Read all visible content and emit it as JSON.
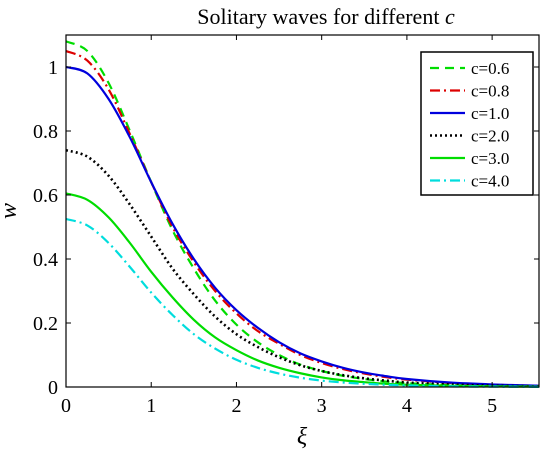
{
  "chart_data": {
    "type": "line",
    "title": "Solitary waves for different ",
    "title_var": "c",
    "xlabel": "ξ",
    "ylabel": "w",
    "xlim": [
      0,
      5.55
    ],
    "ylim": [
      0,
      1.1
    ],
    "xticks": [
      0,
      1,
      2,
      3,
      4,
      5
    ],
    "yticks": [
      0,
      0.2,
      0.4,
      0.6,
      0.8,
      1
    ],
    "ytick_labels": [
      "0",
      "0.2",
      "0.4",
      "0.6",
      "0.8",
      "1"
    ],
    "grid": false,
    "legend_position": "top-right",
    "series": [
      {
        "name": "c=0.6",
        "color": "#00dd00",
        "dash": "dashed",
        "x": [
          0,
          0.25,
          0.5,
          0.75,
          1.0,
          1.25,
          1.5,
          1.75,
          2.0,
          2.25,
          2.5,
          2.75,
          3.0,
          3.25,
          3.5,
          3.75,
          4.0,
          4.5,
          5.0,
          5.55
        ],
        "y": [
          1.08,
          1.05,
          0.95,
          0.8,
          0.64,
          0.49,
          0.37,
          0.27,
          0.195,
          0.14,
          0.1,
          0.07,
          0.05,
          0.035,
          0.025,
          0.017,
          0.012,
          0.006,
          0.003,
          0.001
        ]
      },
      {
        "name": "c=0.8",
        "color": "#dd0000",
        "dash": "dashdot",
        "x": [
          0,
          0.25,
          0.5,
          0.75,
          1.0,
          1.25,
          1.5,
          1.75,
          2.0,
          2.25,
          2.5,
          2.75,
          3.0,
          3.25,
          3.5,
          3.75,
          4.0,
          4.5,
          5.0,
          5.55
        ],
        "y": [
          1.05,
          1.02,
          0.93,
          0.79,
          0.64,
          0.5,
          0.39,
          0.3,
          0.23,
          0.175,
          0.135,
          0.1,
          0.075,
          0.056,
          0.042,
          0.031,
          0.023,
          0.013,
          0.007,
          0.004
        ]
      },
      {
        "name": "c=1.0",
        "color": "#0000dd",
        "dash": "solid",
        "x": [
          0,
          0.25,
          0.5,
          0.75,
          1.0,
          1.25,
          1.5,
          1.75,
          2.0,
          2.25,
          2.5,
          2.75,
          3.0,
          3.25,
          3.5,
          3.75,
          4.0,
          4.5,
          5.0,
          5.55
        ],
        "y": [
          1.0,
          0.98,
          0.9,
          0.78,
          0.64,
          0.51,
          0.4,
          0.31,
          0.24,
          0.185,
          0.14,
          0.105,
          0.08,
          0.06,
          0.045,
          0.034,
          0.025,
          0.014,
          0.008,
          0.004
        ]
      },
      {
        "name": "c=2.0",
        "color": "#000000",
        "dash": "dotted",
        "x": [
          0,
          0.25,
          0.5,
          0.75,
          1.0,
          1.25,
          1.5,
          1.75,
          2.0,
          2.25,
          2.5,
          2.75,
          3.0,
          3.25,
          3.5,
          3.75,
          4.0,
          4.5,
          5.0,
          5.55
        ],
        "y": [
          0.74,
          0.72,
          0.66,
          0.57,
          0.47,
          0.37,
          0.29,
          0.22,
          0.165,
          0.125,
          0.093,
          0.068,
          0.05,
          0.037,
          0.027,
          0.02,
          0.014,
          0.008,
          0.004,
          0.002
        ]
      },
      {
        "name": "c=3.0",
        "color": "#00dd00",
        "dash": "solid",
        "x": [
          0,
          0.25,
          0.5,
          0.75,
          1.0,
          1.25,
          1.5,
          1.75,
          2.0,
          2.25,
          2.5,
          2.75,
          3.0,
          3.25,
          3.5,
          3.75,
          4.0,
          4.5,
          5.0,
          5.55
        ],
        "y": [
          0.605,
          0.585,
          0.53,
          0.45,
          0.36,
          0.28,
          0.21,
          0.155,
          0.115,
          0.083,
          0.06,
          0.043,
          0.03,
          0.021,
          0.015,
          0.01,
          0.007,
          0.004,
          0.002,
          0.001
        ]
      },
      {
        "name": "c=4.0",
        "color": "#00dddd",
        "dash": "dashdot",
        "x": [
          0,
          0.25,
          0.5,
          0.75,
          1.0,
          1.25,
          1.5,
          1.75,
          2.0,
          2.25,
          2.5,
          2.75,
          3.0,
          3.25,
          3.5,
          3.75,
          4.0,
          4.5,
          5.0,
          5.55
        ],
        "y": [
          0.525,
          0.505,
          0.45,
          0.375,
          0.295,
          0.225,
          0.165,
          0.12,
          0.085,
          0.06,
          0.042,
          0.029,
          0.02,
          0.014,
          0.01,
          0.007,
          0.005,
          0.002,
          0.001,
          0.0005
        ]
      }
    ]
  }
}
